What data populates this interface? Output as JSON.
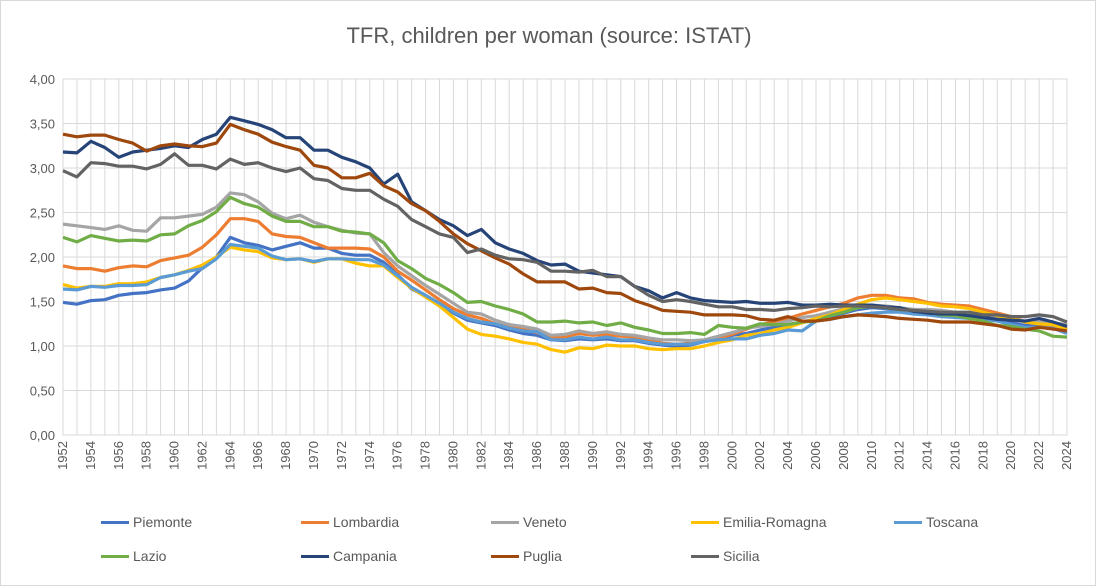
{
  "chart_data": {
    "type": "line",
    "title": "TFR, children per woman (source: ISTAT)",
    "xlabel": "",
    "ylabel": "",
    "ylim": [
      0,
      4
    ],
    "y_ticks": [
      "0,00",
      "0,50",
      "1,00",
      "1,50",
      "2,00",
      "2,50",
      "3,00",
      "3,50",
      "4,00"
    ],
    "x_start": 1952,
    "x_end": 2024,
    "x_tick_step": 2,
    "grid": true,
    "legend": "bottom",
    "series": [
      {
        "name": "Piemonte",
        "color": "#4472C4",
        "values": [
          1.49,
          1.47,
          1.51,
          1.52,
          1.57,
          1.59,
          1.6,
          1.63,
          1.65,
          1.73,
          1.88,
          2.0,
          2.22,
          2.16,
          2.13,
          2.08,
          2.12,
          2.16,
          2.1,
          2.1,
          2.04,
          2.02,
          2.02,
          1.94,
          1.8,
          1.64,
          1.56,
          1.47,
          1.37,
          1.29,
          1.26,
          1.23,
          1.18,
          1.14,
          1.12,
          1.07,
          1.06,
          1.08,
          1.07,
          1.08,
          1.06,
          1.06,
          1.03,
          1.01,
          1.0,
          1.01,
          1.05,
          1.08,
          1.12,
          1.14,
          1.18,
          1.21,
          1.24,
          1.27,
          1.3,
          1.33,
          1.37,
          1.41,
          1.43,
          1.42,
          1.4,
          1.39,
          1.37,
          1.35,
          1.33,
          1.33,
          1.31,
          1.29,
          1.26,
          1.23,
          1.24,
          1.22,
          1.19
        ]
      },
      {
        "name": "Lombardia",
        "color": "#ED7D31",
        "values": [
          1.9,
          1.87,
          1.87,
          1.84,
          1.88,
          1.9,
          1.89,
          1.96,
          1.99,
          2.02,
          2.11,
          2.25,
          2.43,
          2.43,
          2.4,
          2.26,
          2.23,
          2.22,
          2.16,
          2.1,
          2.1,
          2.1,
          2.09,
          2.0,
          1.84,
          1.74,
          1.63,
          1.52,
          1.42,
          1.35,
          1.31,
          1.25,
          1.21,
          1.19,
          1.15,
          1.1,
          1.1,
          1.14,
          1.12,
          1.13,
          1.11,
          1.1,
          1.07,
          1.03,
          1.02,
          1.03,
          1.06,
          1.09,
          1.13,
          1.19,
          1.24,
          1.27,
          1.31,
          1.36,
          1.4,
          1.44,
          1.48,
          1.54,
          1.57,
          1.57,
          1.54,
          1.53,
          1.49,
          1.47,
          1.46,
          1.45,
          1.41,
          1.37,
          1.33,
          1.27,
          1.25,
          1.22,
          1.19
        ]
      },
      {
        "name": "Veneto",
        "color": "#A5A5A5",
        "values": [
          2.37,
          2.35,
          2.33,
          2.31,
          2.35,
          2.3,
          2.29,
          2.44,
          2.44,
          2.46,
          2.48,
          2.56,
          2.72,
          2.7,
          2.62,
          2.49,
          2.43,
          2.47,
          2.39,
          2.34,
          2.3,
          2.27,
          2.26,
          2.05,
          1.9,
          1.79,
          1.68,
          1.58,
          1.48,
          1.38,
          1.36,
          1.29,
          1.24,
          1.22,
          1.19,
          1.12,
          1.13,
          1.17,
          1.14,
          1.16,
          1.13,
          1.12,
          1.09,
          1.07,
          1.07,
          1.06,
          1.07,
          1.11,
          1.15,
          1.2,
          1.22,
          1.24,
          1.28,
          1.32,
          1.34,
          1.38,
          1.42,
          1.45,
          1.46,
          1.45,
          1.43,
          1.41,
          1.41,
          1.4,
          1.38,
          1.36,
          1.35,
          1.33,
          1.3,
          1.28,
          1.28,
          1.26,
          1.24
        ]
      },
      {
        "name": "Emilia-Romagna",
        "color": "#FFC000",
        "values": [
          1.69,
          1.65,
          1.67,
          1.67,
          1.7,
          1.7,
          1.72,
          1.77,
          1.8,
          1.85,
          1.91,
          2.0,
          2.11,
          2.08,
          2.06,
          1.99,
          1.97,
          1.98,
          1.94,
          1.98,
          1.98,
          1.93,
          1.9,
          1.9,
          1.77,
          1.65,
          1.55,
          1.45,
          1.32,
          1.19,
          1.13,
          1.11,
          1.08,
          1.04,
          1.02,
          0.96,
          0.93,
          0.98,
          0.97,
          1.01,
          1.0,
          1.0,
          0.97,
          0.96,
          0.97,
          0.97,
          1.0,
          1.04,
          1.07,
          1.12,
          1.14,
          1.18,
          1.21,
          1.26,
          1.31,
          1.35,
          1.41,
          1.47,
          1.52,
          1.54,
          1.52,
          1.5,
          1.48,
          1.45,
          1.44,
          1.42,
          1.38,
          1.34,
          1.31,
          1.27,
          1.25,
          1.24,
          1.18
        ]
      },
      {
        "name": "Toscana",
        "color": "#5B9BD5",
        "values": [
          1.64,
          1.63,
          1.67,
          1.66,
          1.68,
          1.68,
          1.69,
          1.77,
          1.8,
          1.84,
          1.87,
          1.98,
          2.14,
          2.12,
          2.1,
          2.01,
          1.97,
          1.98,
          1.95,
          1.98,
          1.98,
          1.97,
          1.97,
          1.91,
          1.79,
          1.66,
          1.57,
          1.48,
          1.38,
          1.31,
          1.27,
          1.25,
          1.2,
          1.17,
          1.16,
          1.07,
          1.07,
          1.1,
          1.08,
          1.1,
          1.07,
          1.07,
          1.04,
          1.02,
          1.02,
          1.02,
          1.05,
          1.07,
          1.08,
          1.08,
          1.12,
          1.14,
          1.18,
          1.17,
          1.28,
          1.3,
          1.33,
          1.35,
          1.37,
          1.38,
          1.38,
          1.36,
          1.35,
          1.33,
          1.32,
          1.31,
          1.3,
          1.28,
          1.24,
          1.21,
          1.21,
          1.2,
          1.14
        ]
      },
      {
        "name": "Lazio",
        "color": "#70AD47",
        "values": [
          2.22,
          2.17,
          2.24,
          2.21,
          2.18,
          2.19,
          2.18,
          2.25,
          2.26,
          2.35,
          2.41,
          2.51,
          2.67,
          2.6,
          2.56,
          2.46,
          2.4,
          2.4,
          2.34,
          2.34,
          2.29,
          2.28,
          2.26,
          2.16,
          1.96,
          1.87,
          1.76,
          1.69,
          1.6,
          1.49,
          1.5,
          1.45,
          1.41,
          1.36,
          1.27,
          1.27,
          1.28,
          1.26,
          1.27,
          1.23,
          1.26,
          1.21,
          1.18,
          1.14,
          1.14,
          1.15,
          1.13,
          1.23,
          1.21,
          1.2,
          1.25,
          1.24,
          1.24,
          1.27,
          1.28,
          1.34,
          1.38,
          1.43,
          1.45,
          1.43,
          1.41,
          1.4,
          1.38,
          1.35,
          1.34,
          1.31,
          1.28,
          1.23,
          1.22,
          1.19,
          1.17,
          1.11,
          1.1
        ]
      },
      {
        "name": "Campania",
        "color": "#264478",
        "values": [
          3.18,
          3.17,
          3.3,
          3.23,
          3.12,
          3.18,
          3.2,
          3.22,
          3.25,
          3.23,
          3.32,
          3.38,
          3.57,
          3.53,
          3.49,
          3.43,
          3.34,
          3.34,
          3.2,
          3.2,
          3.12,
          3.07,
          3.0,
          2.82,
          2.93,
          2.62,
          2.52,
          2.42,
          2.35,
          2.24,
          2.31,
          2.16,
          2.09,
          2.04,
          1.96,
          1.91,
          1.92,
          1.84,
          1.82,
          1.8,
          1.78,
          1.67,
          1.62,
          1.54,
          1.6,
          1.54,
          1.51,
          1.5,
          1.49,
          1.5,
          1.48,
          1.48,
          1.49,
          1.46,
          1.46,
          1.47,
          1.46,
          1.46,
          1.46,
          1.44,
          1.43,
          1.39,
          1.37,
          1.36,
          1.36,
          1.34,
          1.32,
          1.3,
          1.29,
          1.28,
          1.31,
          1.27,
          1.22
        ]
      },
      {
        "name": "Puglia",
        "color": "#9E480E",
        "values": [
          3.38,
          3.35,
          3.37,
          3.37,
          3.32,
          3.28,
          3.19,
          3.25,
          3.27,
          3.25,
          3.24,
          3.28,
          3.49,
          3.43,
          3.38,
          3.29,
          3.24,
          3.2,
          3.03,
          3.0,
          2.89,
          2.89,
          2.94,
          2.8,
          2.73,
          2.6,
          2.52,
          2.4,
          2.26,
          2.15,
          2.07,
          1.99,
          1.92,
          1.81,
          1.72,
          1.72,
          1.72,
          1.64,
          1.65,
          1.6,
          1.59,
          1.51,
          1.46,
          1.4,
          1.39,
          1.38,
          1.35,
          1.35,
          1.35,
          1.34,
          1.3,
          1.29,
          1.33,
          1.28,
          1.28,
          1.3,
          1.33,
          1.35,
          1.34,
          1.33,
          1.31,
          1.3,
          1.29,
          1.27,
          1.27,
          1.27,
          1.25,
          1.23,
          1.19,
          1.18,
          1.21,
          1.19,
          1.17
        ]
      },
      {
        "name": "Sicilia",
        "color": "#636363",
        "values": [
          2.97,
          2.9,
          3.06,
          3.05,
          3.02,
          3.02,
          2.99,
          3.04,
          3.16,
          3.03,
          3.03,
          2.99,
          3.1,
          3.04,
          3.06,
          3.0,
          2.96,
          3.0,
          2.88,
          2.86,
          2.77,
          2.75,
          2.75,
          2.65,
          2.57,
          2.42,
          2.34,
          2.26,
          2.22,
          2.05,
          2.09,
          2.02,
          1.98,
          1.97,
          1.94,
          1.84,
          1.84,
          1.83,
          1.85,
          1.78,
          1.78,
          1.67,
          1.57,
          1.5,
          1.52,
          1.5,
          1.47,
          1.44,
          1.44,
          1.41,
          1.41,
          1.4,
          1.42,
          1.43,
          1.45,
          1.44,
          1.45,
          1.45,
          1.44,
          1.43,
          1.41,
          1.4,
          1.39,
          1.38,
          1.38,
          1.38,
          1.35,
          1.35,
          1.33,
          1.33,
          1.35,
          1.33,
          1.27
        ]
      }
    ]
  }
}
